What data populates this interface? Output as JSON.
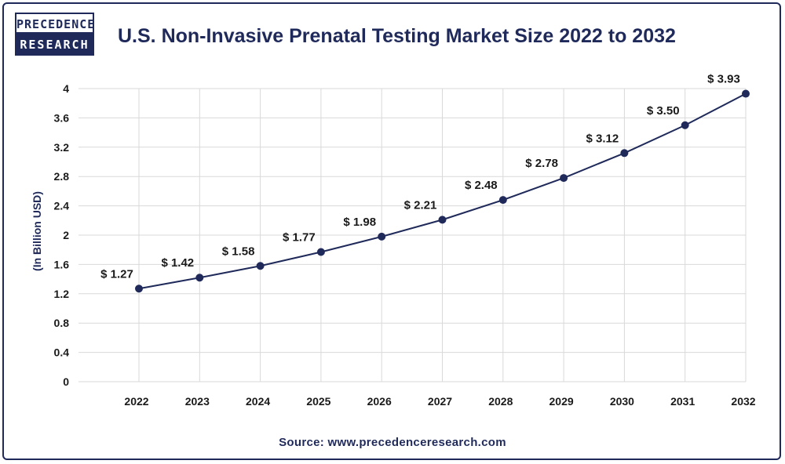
{
  "logo": {
    "line1": "PRECEDENCE",
    "line2": "RESEARCH"
  },
  "colors": {
    "primary": "#1f2a5a",
    "grid": "#d9d9d9"
  },
  "source": "Source: www.precedenceresearch.com",
  "chart_data": {
    "type": "line",
    "title": "U.S. Non-Invasive Prenatal Testing Market Size 2022 to 2032",
    "xlabel": "",
    "ylabel": "(In Billion USD)",
    "categories": [
      "2022",
      "2023",
      "2024",
      "2025",
      "2026",
      "2027",
      "2028",
      "2029",
      "2030",
      "2031",
      "2032"
    ],
    "values": [
      1.27,
      1.42,
      1.58,
      1.77,
      1.98,
      2.21,
      2.48,
      2.78,
      3.12,
      3.5,
      3.93
    ],
    "data_labels": [
      "$ 1.27",
      "$ 1.42",
      "$ 1.58",
      "$ 1.77",
      "$ 1.98",
      "$ 2.21",
      "$ 2.48",
      "$ 2.78",
      "$ 3.12",
      "$ 3.50",
      "$ 3.93"
    ],
    "yticks": [
      "0",
      "0.4",
      "0.8",
      "1.2",
      "1.6",
      "2",
      "2.4",
      "2.8",
      "3.2",
      "3.6",
      "4"
    ],
    "ylim": [
      0,
      4
    ],
    "grid": true,
    "legend": "none"
  }
}
